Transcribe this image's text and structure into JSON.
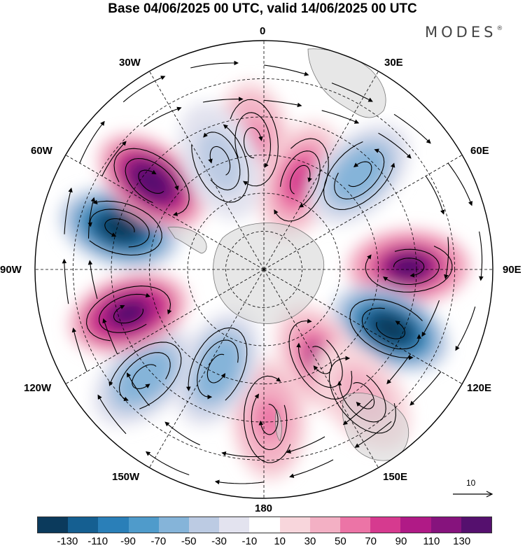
{
  "title": "Base 04/06/2025 00 UTC, valid 14/06/2025 00 UTC",
  "brand": "MODES",
  "brand_mark": "®",
  "longitude_labels": {
    "lon_0": "0",
    "lon_30e": "30E",
    "lon_60e": "60E",
    "lon_90e": "90E",
    "lon_120e": "120E",
    "lon_150e": "150E",
    "lon_180": "180",
    "lon_150w": "150W",
    "lon_120w": "120W",
    "lon_90w": "90W",
    "lon_60w": "60W",
    "lon_30w": "30W"
  },
  "reference_vector_label": "10",
  "colorbar": {
    "colors": [
      "#0b3a5c",
      "#155f91",
      "#2a7fb8",
      "#4f9bcb",
      "#85b4d9",
      "#bccbe3",
      "#e3e3ef",
      "#ffffff",
      "#f8d6dc",
      "#f3b0c4",
      "#ec74a6",
      "#d63a8f",
      "#b01a86",
      "#86137d",
      "#55106e"
    ],
    "tick_labels": [
      "-130",
      "-110",
      "-90",
      "-70",
      "-50",
      "-30",
      "-10",
      "10",
      "30",
      "50",
      "70",
      "90",
      "110",
      "130"
    ]
  },
  "anomaly_centers": [
    {
      "lon": 355,
      "lat": 40,
      "value": 60
    },
    {
      "lon": 22,
      "lat": 52,
      "value": 70
    },
    {
      "lon": 45,
      "lat": 37,
      "value": -70
    },
    {
      "lon": 89,
      "lat": 33,
      "value": 130
    },
    {
      "lon": 115,
      "lat": 35,
      "value": -150
    },
    {
      "lon": 148,
      "lat": 48,
      "value": 90
    },
    {
      "lon": 142,
      "lat": 27,
      "value": 40
    },
    {
      "lon": 178,
      "lat": 31,
      "value": 60
    },
    {
      "lon": 205,
      "lat": 47,
      "value": -70
    },
    {
      "lon": 228,
      "lat": 27,
      "value": -70
    },
    {
      "lon": 252,
      "lat": 34,
      "value": 140
    },
    {
      "lon": 286,
      "lat": 31,
      "value": -150
    },
    {
      "lon": 308,
      "lat": 34,
      "value": 150
    },
    {
      "lon": 338,
      "lat": 44,
      "value": -50
    }
  ]
}
